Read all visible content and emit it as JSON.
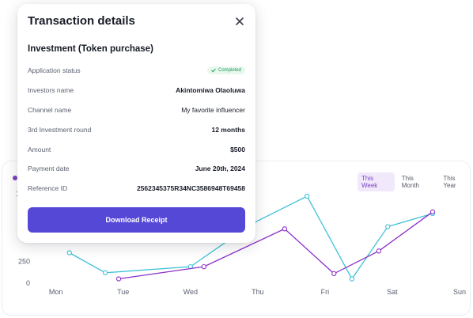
{
  "chart": {
    "range_tabs": [
      {
        "label": "This Week",
        "active": true
      },
      {
        "label": "This Month",
        "active": false
      },
      {
        "label": "This Year",
        "active": false
      }
    ],
    "colors": {
      "series_a": "#3fc1d8",
      "series_b": "#8a2fc9",
      "accent": "#7b3fc4"
    }
  },
  "chart_data": {
    "type": "line",
    "categories": [
      "Mon",
      "Tue",
      "Wed",
      "Thu",
      "Fri",
      "Sat",
      "Sun"
    ],
    "y_tick_labels": [
      "0",
      "250"
    ],
    "y_partial_label": "1",
    "grid": false,
    "series": [
      {
        "x": [
          1.5,
          2.3,
          4.2,
          5.6,
          6.8,
          7.8,
          8.6,
          9.6
        ],
        "values": [
          350,
          120,
          190,
          690,
          1000,
          50,
          650,
          800
        ]
      },
      {
        "x": [
          2.6,
          4.5,
          6.3,
          7.4,
          8.4,
          9.6
        ],
        "values": [
          50,
          190,
          625,
          110,
          370,
          820
        ]
      }
    ],
    "x_range": [
      0.5,
      10.5
    ],
    "ylim": [
      0,
      1000
    ]
  },
  "modal": {
    "title": "Transaction details",
    "close_icon": "close-icon",
    "section_title": "Investment (Token purchase)",
    "rows": [
      {
        "label": "Application status",
        "value": "Completed",
        "type": "badge"
      },
      {
        "label": "Investors name",
        "value": "Akintomiwa Olaoluwa",
        "type": "bold"
      },
      {
        "label": "Channel name",
        "value": "My favorite influencer",
        "type": "normal"
      },
      {
        "label": "3rd Investment round",
        "value": "12 months",
        "type": "bold"
      },
      {
        "label": "Amount",
        "value": "$500",
        "type": "bold"
      },
      {
        "label": "Payment date",
        "value": "June 20th, 2024",
        "type": "bold"
      },
      {
        "label": "Reference ID",
        "value": "2562345375R34NC3586948T69458",
        "type": "bold"
      }
    ],
    "download_label": "Download Receipt",
    "colors": {
      "primary": "#5548d6",
      "badge_bg": "#e8f8ee",
      "badge_text": "#1f9a55"
    }
  }
}
